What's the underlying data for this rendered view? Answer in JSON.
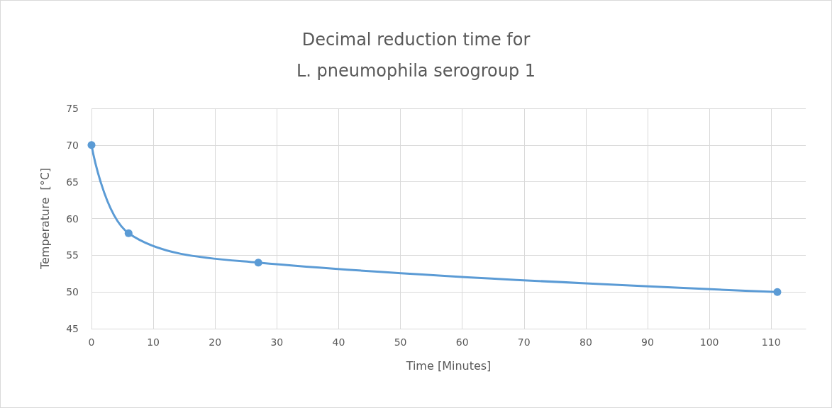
{
  "chart_data": {
    "type": "line",
    "title": "Decimal reduction time for\nL. pneumophila serogroup 1",
    "xlabel": "Time [Minutes]",
    "ylabel": "Temperature  [°C]",
    "x": [
      0,
      6,
      27,
      111
    ],
    "series": [
      {
        "color": "#5b9bd5",
        "values": [
          70,
          58,
          54,
          50
        ]
      }
    ],
    "xlim": [
      0,
      115.6
    ],
    "xticks": [
      0,
      10,
      20,
      30,
      40,
      50,
      60,
      70,
      80,
      90,
      100,
      110
    ],
    "ylim": [
      45,
      75
    ],
    "yticks": [
      45,
      50,
      55,
      60,
      65,
      70,
      75
    ],
    "grid": true,
    "marker": "circle",
    "line_style": "solid"
  }
}
